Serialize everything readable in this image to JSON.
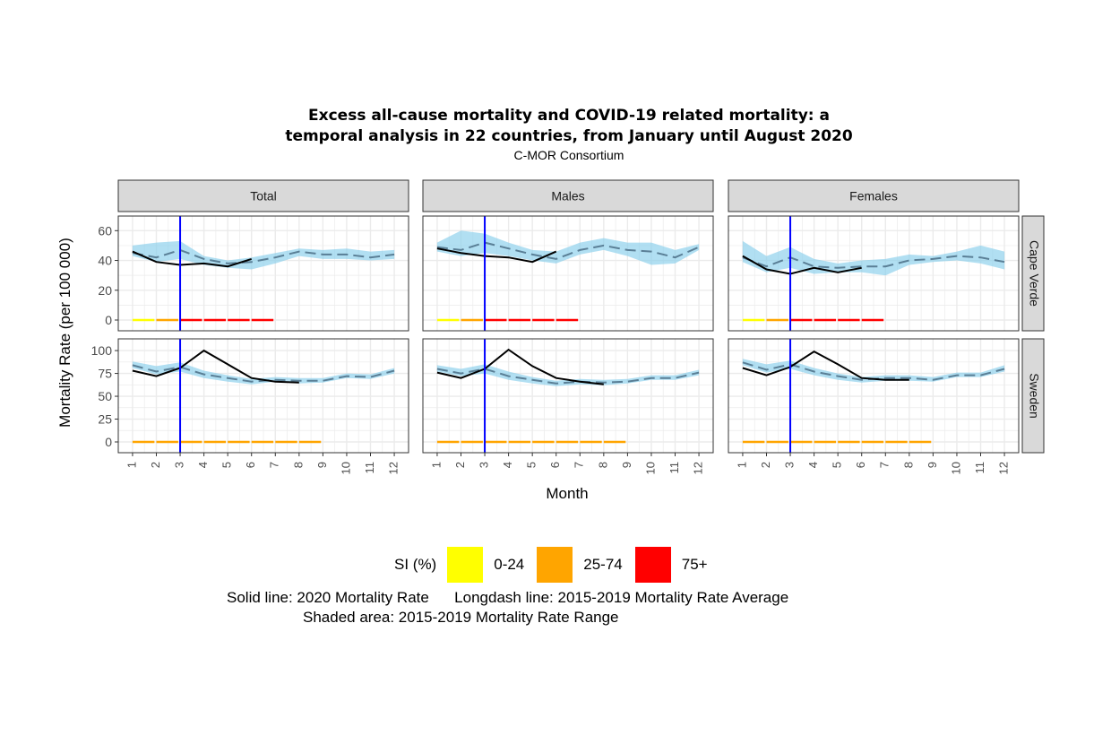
{
  "chart_data": {
    "type": "line",
    "title": "Excess all-cause mortality and COVID-19 related mortality: a temporal analysis in 22 countries, from January until August 2020",
    "title_lines": [
      "Excess all-cause mortality and COVID-19 related mortality: a",
      "temporal analysis in 22 countries, from January until August 2020"
    ],
    "subtitle": "C-MOR Consortium",
    "xlabel": "Month",
    "ylabel": "Mortality Rate (per 100 000)",
    "x_ticks": [
      1,
      2,
      3,
      4,
      5,
      6,
      7,
      8,
      9,
      10,
      11,
      12
    ],
    "x_tick_labels": [
      "1",
      "2",
      "3",
      "4",
      "5",
      "6",
      "7",
      "8",
      "9",
      "10",
      "11",
      "12"
    ],
    "columns": [
      "Total",
      "Males",
      "Females"
    ],
    "rows": [
      {
        "name": "Cape Verde",
        "ylim": [
          0,
          65
        ],
        "y_ticks": [
          0,
          20,
          40,
          60
        ],
        "y_tick_labels": [
          "0",
          "20",
          "40",
          "60"
        ]
      },
      {
        "name": "Sweden",
        "ylim": [
          0,
          105
        ],
        "y_ticks": [
          0,
          25,
          50,
          75,
          100
        ],
        "y_tick_labels": [
          "0",
          "25",
          "50",
          "75",
          "100"
        ]
      }
    ],
    "vertical_marker": {
      "x": 3,
      "color": "#0000ff"
    },
    "si_months": [
      1,
      2,
      3,
      4,
      5,
      6,
      7,
      8
    ],
    "si_colors": {
      "0-24": "#ffff00",
      "25-74": "#ffa500",
      "75+": "#ff0000"
    },
    "panels": [
      {
        "row": "Cape Verde",
        "column": "Total",
        "actual": [
          46,
          39,
          37,
          38,
          36,
          41
        ],
        "avg": [
          45,
          42,
          47,
          41,
          38,
          39,
          42,
          46,
          44,
          44,
          42,
          44
        ],
        "range_min": [
          43,
          39,
          41,
          37,
          35,
          34,
          38,
          43,
          41,
          41,
          40,
          41
        ],
        "range_max": [
          50,
          52,
          53,
          43,
          40,
          42,
          45,
          48,
          47,
          48,
          46,
          47
        ],
        "si": [
          "0-24",
          "25-74",
          "75+",
          "75+",
          "75+",
          "75+"
        ]
      },
      {
        "row": "Cape Verde",
        "column": "Males",
        "actual": [
          48,
          45,
          43,
          42,
          39,
          46
        ],
        "avg": [
          49,
          47,
          52,
          48,
          44,
          41,
          47,
          50,
          47,
          46,
          42,
          49
        ],
        "range_min": [
          46,
          43,
          45,
          43,
          40,
          38,
          44,
          47,
          43,
          37,
          38,
          47
        ],
        "range_max": [
          52,
          60,
          58,
          52,
          47,
          46,
          52,
          55,
          52,
          52,
          47,
          51
        ],
        "si": [
          "0-24",
          "25-74",
          "75+",
          "75+",
          "75+",
          "75+"
        ]
      },
      {
        "row": "Cape Verde",
        "column": "Females",
        "actual": [
          43,
          34,
          31,
          35,
          32,
          35
        ],
        "avg": [
          42,
          36,
          42,
          36,
          35,
          36,
          36,
          40,
          41,
          43,
          42,
          39
        ],
        "range_min": [
          39,
          32,
          35,
          31,
          32,
          32,
          30,
          37,
          39,
          40,
          38,
          34
        ],
        "range_max": [
          53,
          43,
          49,
          41,
          38,
          40,
          41,
          44,
          43,
          46,
          50,
          46
        ],
        "si": [
          "0-24",
          "25-74",
          "75+",
          "75+",
          "75+",
          "75+"
        ]
      },
      {
        "row": "Sweden",
        "column": "Total",
        "actual": [
          78,
          72,
          81,
          100,
          85,
          70,
          66,
          65
        ],
        "avg": [
          84,
          77,
          82,
          74,
          70,
          66,
          68,
          67,
          67,
          72,
          71,
          78
        ],
        "range_min": [
          81,
          74,
          77,
          70,
          66,
          63,
          66,
          64,
          65,
          70,
          69,
          75
        ],
        "range_max": [
          88,
          83,
          87,
          78,
          73,
          69,
          71,
          70,
          70,
          75,
          74,
          81
        ],
        "si": [
          "25-74",
          "25-74",
          "25-74",
          "25-74",
          "25-74",
          "25-74",
          "25-74",
          "25-74"
        ]
      },
      {
        "row": "Sweden",
        "column": "Males",
        "actual": [
          76,
          70,
          80,
          101,
          83,
          70,
          66,
          63
        ],
        "avg": [
          80,
          75,
          80,
          72,
          68,
          64,
          66,
          65,
          66,
          70,
          70,
          76
        ],
        "range_min": [
          77,
          72,
          75,
          68,
          64,
          61,
          63,
          62,
          64,
          68,
          68,
          73
        ],
        "range_max": [
          84,
          80,
          85,
          77,
          71,
          67,
          69,
          68,
          69,
          73,
          73,
          79
        ],
        "si": [
          "25-74",
          "25-74",
          "25-74",
          "25-74",
          "25-74",
          "25-74",
          "25-74",
          "25-74"
        ]
      },
      {
        "row": "Sweden",
        "column": "Females",
        "actual": [
          81,
          73,
          82,
          99,
          85,
          70,
          68,
          68
        ],
        "avg": [
          87,
          79,
          85,
          77,
          72,
          68,
          70,
          70,
          68,
          73,
          73,
          80
        ],
        "range_min": [
          84,
          76,
          80,
          73,
          68,
          65,
          67,
          67,
          66,
          71,
          71,
          77
        ],
        "range_max": [
          91,
          85,
          89,
          81,
          75,
          71,
          73,
          73,
          71,
          76,
          76,
          84
        ],
        "si": [
          "25-74",
          "25-74",
          "25-74",
          "25-74",
          "25-74",
          "25-74",
          "25-74",
          "25-74"
        ]
      }
    ],
    "series_styles": {
      "actual": {
        "color": "#000000",
        "dash": "solid"
      },
      "avg": {
        "color": "#5a7f96",
        "dash": "longdash"
      },
      "range": {
        "color": "#87ceeb",
        "opacity": 0.65
      }
    },
    "legend": {
      "placement": "bottom",
      "title": "SI (%)",
      "entries": [
        {
          "label": "0-24",
          "color": "#ffff00"
        },
        {
          "label": "25-74",
          "color": "#ffa500"
        },
        {
          "label": "75+",
          "color": "#ff0000"
        }
      ],
      "notes": [
        "Solid line: 2020 Mortality Rate      Longdash line: 2015-2019 Mortality Rate Average",
        "Shaded area: 2015-2019 Mortality Rate Range"
      ]
    },
    "grid": true,
    "colors": {
      "strip_fill": "#d9d9d9",
      "grid": "#ebebeb",
      "panel_border": "#333333"
    }
  }
}
